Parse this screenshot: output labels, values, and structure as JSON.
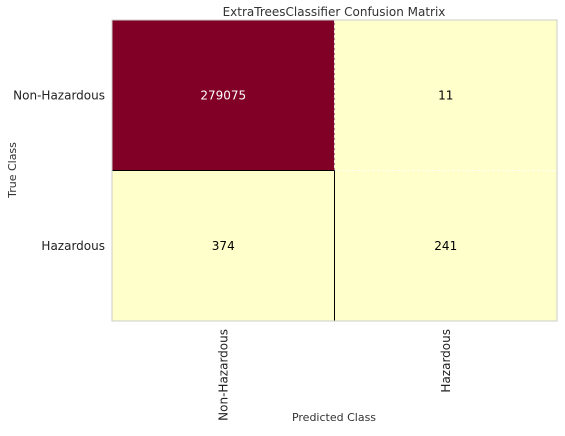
{
  "chart_data": {
    "type": "heatmap",
    "title": "ExtraTreesClassifier Confusion Matrix",
    "xlabel": "Predicted Class",
    "ylabel": "True Class",
    "x_categories": [
      "Non-Hazardous",
      "Hazardous"
    ],
    "y_categories": [
      "Non-Hazardous",
      "Hazardous"
    ],
    "matrix": [
      [
        279075,
        11
      ],
      [
        374,
        241
      ]
    ],
    "grid": true,
    "colors": {
      "high": "#800026",
      "low": "#ffffcc",
      "text_on_high": "#ffffff",
      "text_on_low": "#000000",
      "divider": "#000000",
      "frame": "#cccccc"
    }
  }
}
